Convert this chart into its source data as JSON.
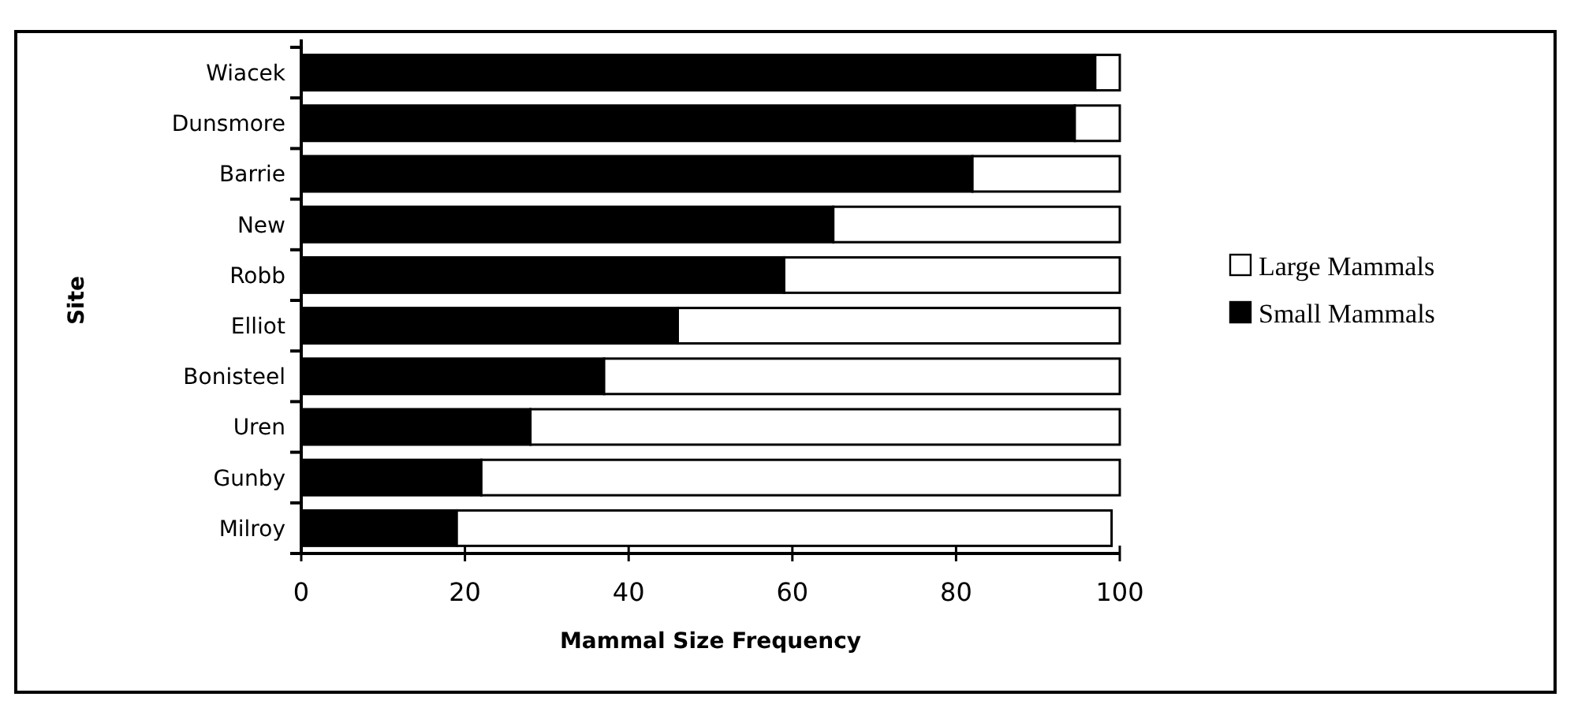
{
  "chart_data": {
    "type": "bar",
    "orientation": "horizontal",
    "stacked": true,
    "xlabel": "Mammal Size Frequency",
    "ylabel": "Site",
    "categories": [
      "Wiacek",
      "Dunsmore",
      "Barrie",
      "New",
      "Robb",
      "Elliot",
      "Bonisteel",
      "Uren",
      "Gunby",
      "Milroy"
    ],
    "series": [
      {
        "name": "Small Mammals",
        "color": "#000000",
        "values": [
          97,
          94.5,
          82,
          65,
          59,
          46,
          37,
          28,
          22,
          19
        ]
      },
      {
        "name": "Large Mammals",
        "color": "#ffffff",
        "values": [
          3,
          5.5,
          18,
          35,
          41,
          54,
          63,
          72,
          78,
          80
        ]
      }
    ],
    "xlim": [
      0,
      100
    ],
    "xticks": [
      0,
      20,
      40,
      60,
      80,
      100
    ],
    "legend": "right",
    "grid": false
  }
}
